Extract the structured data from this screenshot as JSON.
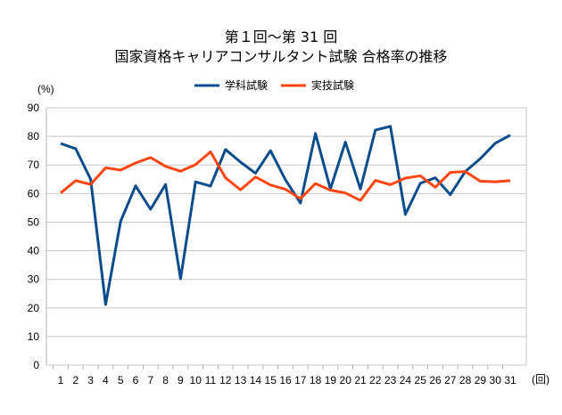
{
  "chart_data": {
    "type": "line",
    "title": "第１回〜第 31 回",
    "subtitle": "国家資格キャリアコンサルタント試験 合格率の推移",
    "ylabel": "(%)",
    "xlabel": "(回)",
    "ylim": [
      0,
      90
    ],
    "yticks": [
      0,
      10,
      20,
      30,
      40,
      50,
      60,
      70,
      80,
      90
    ],
    "grid": true,
    "legend_position": "top",
    "x": [
      "1",
      "2",
      "3",
      "4",
      "5",
      "6",
      "7",
      "8",
      "9",
      "10",
      "11",
      "12",
      "13",
      "14",
      "15",
      "16",
      "17",
      "18",
      "19",
      "20",
      "21",
      "22",
      "23",
      "24",
      "25",
      "26",
      "27",
      "28",
      "29",
      "30",
      "31"
    ],
    "series": [
      {
        "name": "学科試験",
        "color": "#0b4d8c",
        "values": [
          77.5,
          75.7,
          65,
          21.2,
          50.3,
          62.7,
          54.5,
          63.2,
          30.2,
          64.1,
          62.6,
          75.4,
          71,
          67.1,
          75,
          64.8,
          56.7,
          81,
          61.6,
          78,
          61.6,
          82.2,
          83.5,
          52.7,
          63.6,
          65.5,
          59.6,
          67.7,
          72.2,
          77.6,
          80.4
        ]
      },
      {
        "name": "実技試験",
        "color": "#ff4612",
        "values": [
          60.2,
          64.5,
          63.2,
          69,
          68.2,
          70.7,
          72.6,
          69.5,
          67.8,
          70.1,
          74.6,
          65.5,
          61.3,
          65.8,
          63,
          61.5,
          58.2,
          63.5,
          61.2,
          60.2,
          57.6,
          64.6,
          63.1,
          65.4,
          66.2,
          62.2,
          67.4,
          67.7,
          64.3,
          64.1,
          64.5
        ]
      }
    ]
  }
}
